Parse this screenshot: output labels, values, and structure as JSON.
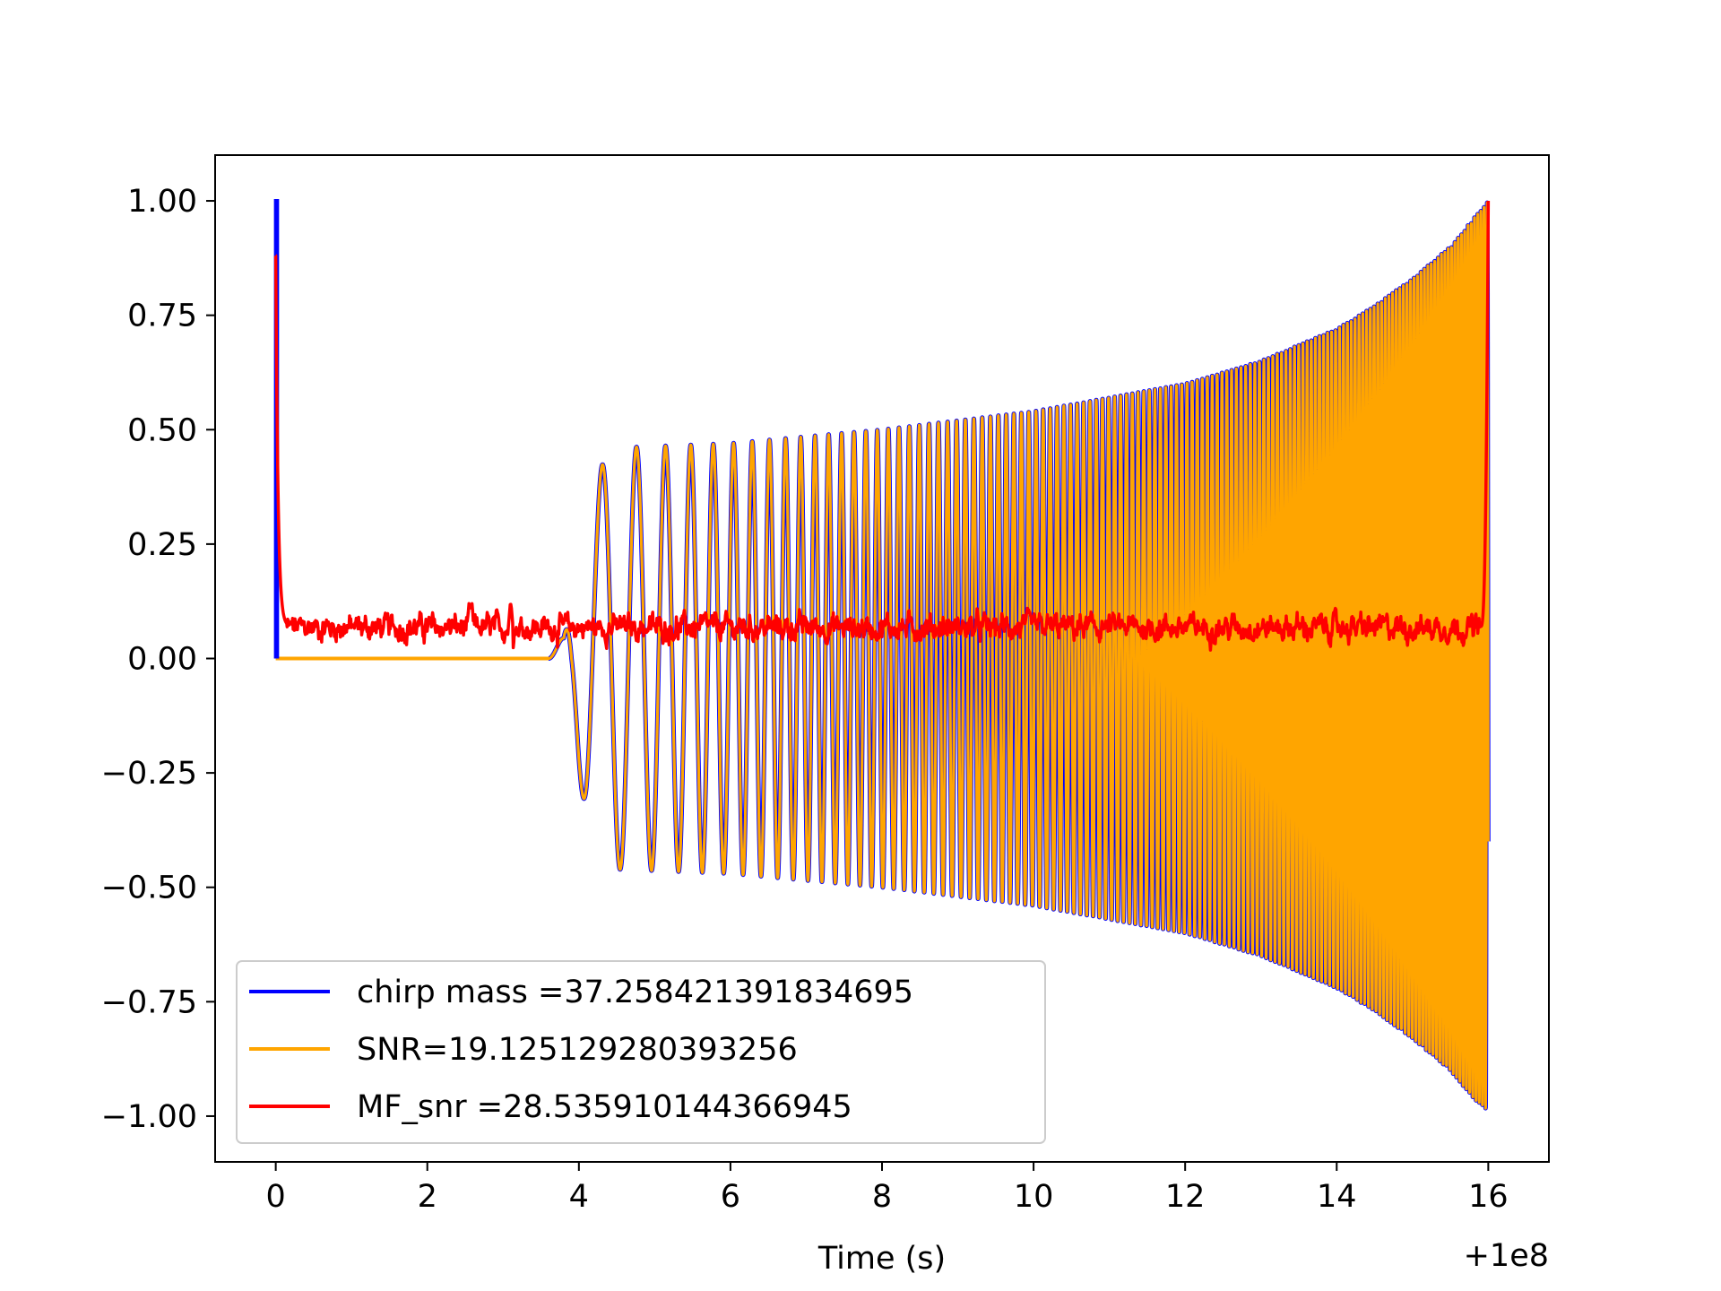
{
  "chart_data": {
    "type": "line",
    "title": "",
    "xlabel": "Time (s)",
    "ylabel": "",
    "x_offset_label": "+1e8",
    "xlim": [
      -0.8,
      16.8
    ],
    "ylim": [
      -1.1,
      1.1
    ],
    "x_ticks": [
      0,
      2,
      4,
      6,
      8,
      10,
      12,
      14,
      16
    ],
    "x_tick_labels": [
      "0",
      "2",
      "4",
      "6",
      "8",
      "10",
      "12",
      "14",
      "16"
    ],
    "y_ticks": [
      1.0,
      0.75,
      0.5,
      0.25,
      0.0,
      -0.25,
      -0.5,
      -0.75,
      -1.0
    ],
    "y_tick_labels": [
      "1.00",
      "0.75",
      "0.50",
      "0.25",
      "0.00",
      "−0.25",
      "−0.50",
      "−0.75",
      "−1.00"
    ],
    "grid": false,
    "legend_position": "lower-left",
    "series": [
      {
        "name": "chirp mass =37.258421391834695",
        "color": "#0000ff",
        "description_points": {
          "x": [
            0.0,
            0.0,
            0.02,
            0.02,
            16.0
          ],
          "y": [
            0.0,
            1.0,
            1.0,
            0.0,
            0.0
          ]
        }
      },
      {
        "name": "SNR=19.125129280393256",
        "color": "#ffa500",
        "envelope": {
          "x": [
            0,
            3.6,
            3.8,
            3.9,
            4.0,
            4.1,
            4.25,
            4.4,
            6,
            8,
            10,
            12,
            13,
            14,
            14.5,
            15,
            15.5,
            15.8,
            16.0
          ],
          "upper": [
            0,
            0,
            0.05,
            0.18,
            0.3,
            0.35,
            0.4,
            0.46,
            0.47,
            0.5,
            0.54,
            0.6,
            0.65,
            0.72,
            0.77,
            0.83,
            0.9,
            0.96,
            1.0
          ],
          "lower": [
            0,
            0,
            -0.04,
            -0.12,
            -0.25,
            -0.35,
            -0.43,
            -0.46,
            -0.47,
            -0.5,
            -0.54,
            -0.6,
            -0.65,
            -0.72,
            -0.77,
            -0.83,
            -0.9,
            -0.96,
            -0.99
          ]
        }
      },
      {
        "name": "MF_snr =28.535910144366945",
        "color": "#ff0000",
        "key_points": {
          "x": [
            0.0,
            0.02,
            0.1,
            0.15,
            2.57,
            3.1,
            15.9,
            15.95,
            16.0
          ],
          "y": [
            0.88,
            0.88,
            0.25,
            0.07,
            0.16,
            0.13,
            0.12,
            0.4,
            1.0
          ]
        },
        "baseline": 0.04
      }
    ]
  }
}
